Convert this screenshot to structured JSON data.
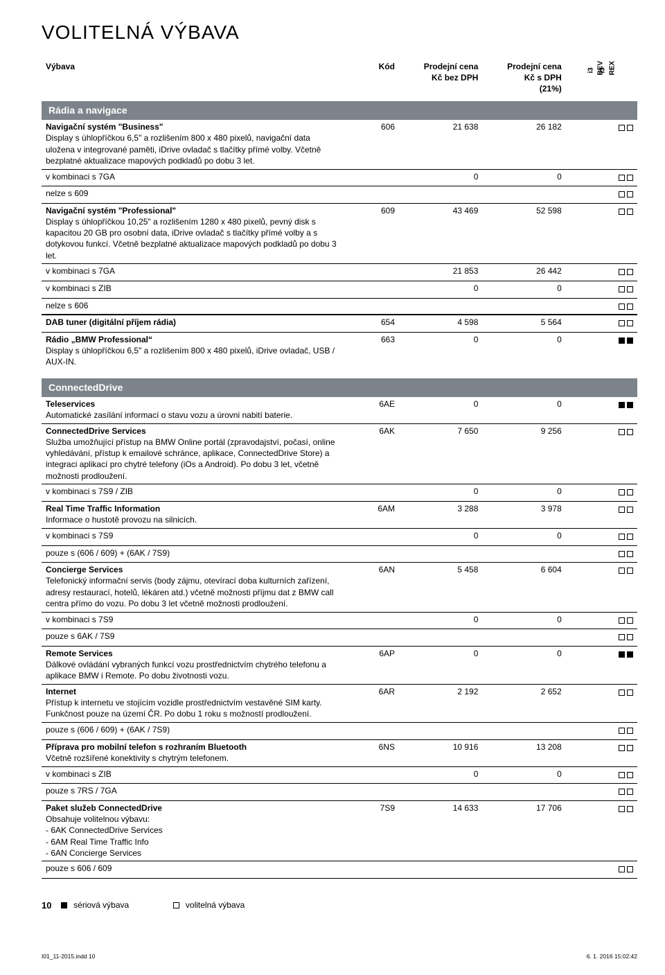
{
  "page_title": "VOLITELNÁ VÝBAVA",
  "columns": {
    "name": "Výbava",
    "code": "Kód",
    "price1": "Prodejní cena\nKč bez DPH",
    "price2": "Prodejní cena\nKč s DPH\n(21%)",
    "variant1": "i3 BEV",
    "variant2": "i3 REX"
  },
  "sections": [
    {
      "title": "Rádia a navigace",
      "rows": [
        {
          "name": "Navigační systém \"Business\"",
          "desc": "Display s úhlopříčkou 6,5\" a rozlišením 800 x 480 pixelů, navigační data uložena v integrované paměti, iDrive ovladač s tlačítky přímé volby. Včetně bezplatné aktualizace mapových podkladů po dobu 3 let.",
          "code": "606",
          "p1": "21 638",
          "p2": "26 182",
          "f": [
            "o",
            "o"
          ],
          "hr": true
        },
        {
          "name": "v kombinaci s 7GA",
          "code": "",
          "p1": "0",
          "p2": "0",
          "f": [
            "o",
            "o"
          ],
          "hr": true
        },
        {
          "name": "nelze s 609",
          "f": [
            "o",
            "o"
          ],
          "hr": true
        },
        {
          "name": "Navigační systém \"Professional\"",
          "desc": "Display s úhlopříčkou 10,25\" a rozlišením 1280 x 480 pixelů, pevný disk s kapacitou 20 GB pro osobní data, iDrive ovladač s tlačítky přímé volby a s dotykovou funkcí. Včetně bezplatné aktualizace mapových podkladů po dobu 3 let.",
          "code": "609",
          "p1": "43 469",
          "p2": "52 598",
          "f": [
            "o",
            "o"
          ],
          "hr": true
        },
        {
          "name": "v kombinaci s 7GA",
          "p1": "21 853",
          "p2": "26 442",
          "f": [
            "o",
            "o"
          ],
          "hr": true
        },
        {
          "name": "v kombinaci s ZIB",
          "p1": "0",
          "p2": "0",
          "f": [
            "o",
            "o"
          ],
          "hr": true
        },
        {
          "name": "nelze s 606",
          "f": [
            "o",
            "o"
          ],
          "thick": true
        },
        {
          "name": "DAB tuner (digitální příjem rádia)",
          "code": "654",
          "p1": "4 598",
          "p2": "5 564",
          "f": [
            "o",
            "o"
          ],
          "hr": true,
          "bold": true
        },
        {
          "name": "Rádio „BMW Professional“",
          "desc": "Display s úhlopříčkou 6,5\" a rozlišením 800 x 480 pixelů, iDrive ovladač, USB / AUX-IN.",
          "code": "663",
          "p1": "0",
          "p2": "0",
          "f": [
            "s",
            "s"
          ],
          "bold": true
        }
      ]
    },
    {
      "title": "ConnectedDrive",
      "rows": [
        {
          "name": "Teleservices",
          "desc": "Automatické zasílání informací o stavu vozu a úrovni nabití baterie.",
          "code": "6AE",
          "p1": "0",
          "p2": "0",
          "f": [
            "s",
            "s"
          ],
          "hr": true,
          "bold": true
        },
        {
          "name": "ConnectedDrive Services",
          "desc": "Služba umožňující přístup na BMW Online portál (zpravodajství, počasí, online vyhledávání, přístup k emailové schránce, aplikace, ConnectedDrive Store) a integraci aplikací pro chytré telefony (iOs a Android). Po dobu 3 let, včetně možnosti prodloužení.",
          "code": "6AK",
          "p1": "7 650",
          "p2": "9 256",
          "f": [
            "o",
            "o"
          ],
          "hr": true,
          "bold": true
        },
        {
          "name": "v kombinaci s 7S9 / ZIB",
          "p1": "0",
          "p2": "0",
          "f": [
            "o",
            "o"
          ],
          "hr": true
        },
        {
          "name": "Real Time Traffic Information",
          "desc": "Informace o hustotě provozu na silnicích.",
          "code": "6AM",
          "p1": "3 288",
          "p2": "3 978",
          "f": [
            "o",
            "o"
          ],
          "hr": true,
          "bold": true
        },
        {
          "name": "v kombinaci s 7S9",
          "p1": "0",
          "p2": "0",
          "f": [
            "o",
            "o"
          ],
          "hr": true
        },
        {
          "name": "pouze s (606 / 609) + (6AK / 7S9)",
          "f": [
            "o",
            "o"
          ],
          "hr": true
        },
        {
          "name": "Concierge Services",
          "desc": "Telefonický informační servis (body zájmu, otevírací doba kulturních zařízení, adresy restaurací, hotelů, lékáren atd.) včetně možnosti příjmu dat z BMW call centra přímo do vozu. Po dobu 3 let včetně možnosti prodloužení.",
          "code": "6AN",
          "p1": "5 458",
          "p2": "6 604",
          "f": [
            "o",
            "o"
          ],
          "hr": true,
          "bold": true
        },
        {
          "name": "v kombinaci s 7S9",
          "p1": "0",
          "p2": "0",
          "f": [
            "o",
            "o"
          ],
          "hr": true
        },
        {
          "name": "pouze s 6AK / 7S9",
          "f": [
            "o",
            "o"
          ],
          "hr": true
        },
        {
          "name": "Remote Services",
          "desc": "Dálkové ovládání vybraných funkcí vozu prostřednictvím chytrého telefonu a aplikace BMW i Remote. Po dobu životnosti vozu.",
          "code": "6AP",
          "p1": "0",
          "p2": "0",
          "f": [
            "s",
            "s"
          ],
          "hr": true,
          "bold": true
        },
        {
          "name": "Internet",
          "desc": "Přístup k internetu ve stojícím vozidle prostřednictvím vestavěné SIM karty. Funkčnost pouze na území ČR. Po dobu 1 roku s možností prodloužení.",
          "code": "6AR",
          "p1": "2 192",
          "p2": "2 652",
          "f": [
            "o",
            "o"
          ],
          "hr": true,
          "bold": true
        },
        {
          "name": "pouze s (606 / 609) + (6AK / 7S9)",
          "f": [
            "o",
            "o"
          ],
          "hr": true
        },
        {
          "name": "Příprava pro mobilní telefon s rozhraním Bluetooth",
          "desc": "Včetně rozšířené konektivity s chytrým telefonem.",
          "code": "6NS",
          "p1": "10 916",
          "p2": "13 208",
          "f": [
            "o",
            "o"
          ],
          "hr": true,
          "bold": true
        },
        {
          "name": "v kombinaci s ZIB",
          "p1": "0",
          "p2": "0",
          "f": [
            "o",
            "o"
          ],
          "hr": true
        },
        {
          "name": "pouze s 7RS / 7GA",
          "f": [
            "o",
            "o"
          ],
          "hr": true
        },
        {
          "name": "Paket služeb ConnectedDrive",
          "desc": "Obsahuje volitelnou výbavu:\n- 6AK ConnectedDrive Services\n- 6AM Real Time Traffic Info\n- 6AN Concierge Services",
          "code": "7S9",
          "p1": "14 633",
          "p2": "17 706",
          "f": [
            "o",
            "o"
          ],
          "hr": true,
          "bold": true
        },
        {
          "name": "pouze s 606 / 609",
          "f": [
            "o",
            "o"
          ],
          "hr": true
        }
      ]
    }
  ],
  "legend": {
    "std": "sériová výbava",
    "opt": "volitelná výbava"
  },
  "page_number": "10",
  "footer_left": "I01_11-2015.indd   10",
  "footer_right": "6. 1. 2016   15:02:42"
}
